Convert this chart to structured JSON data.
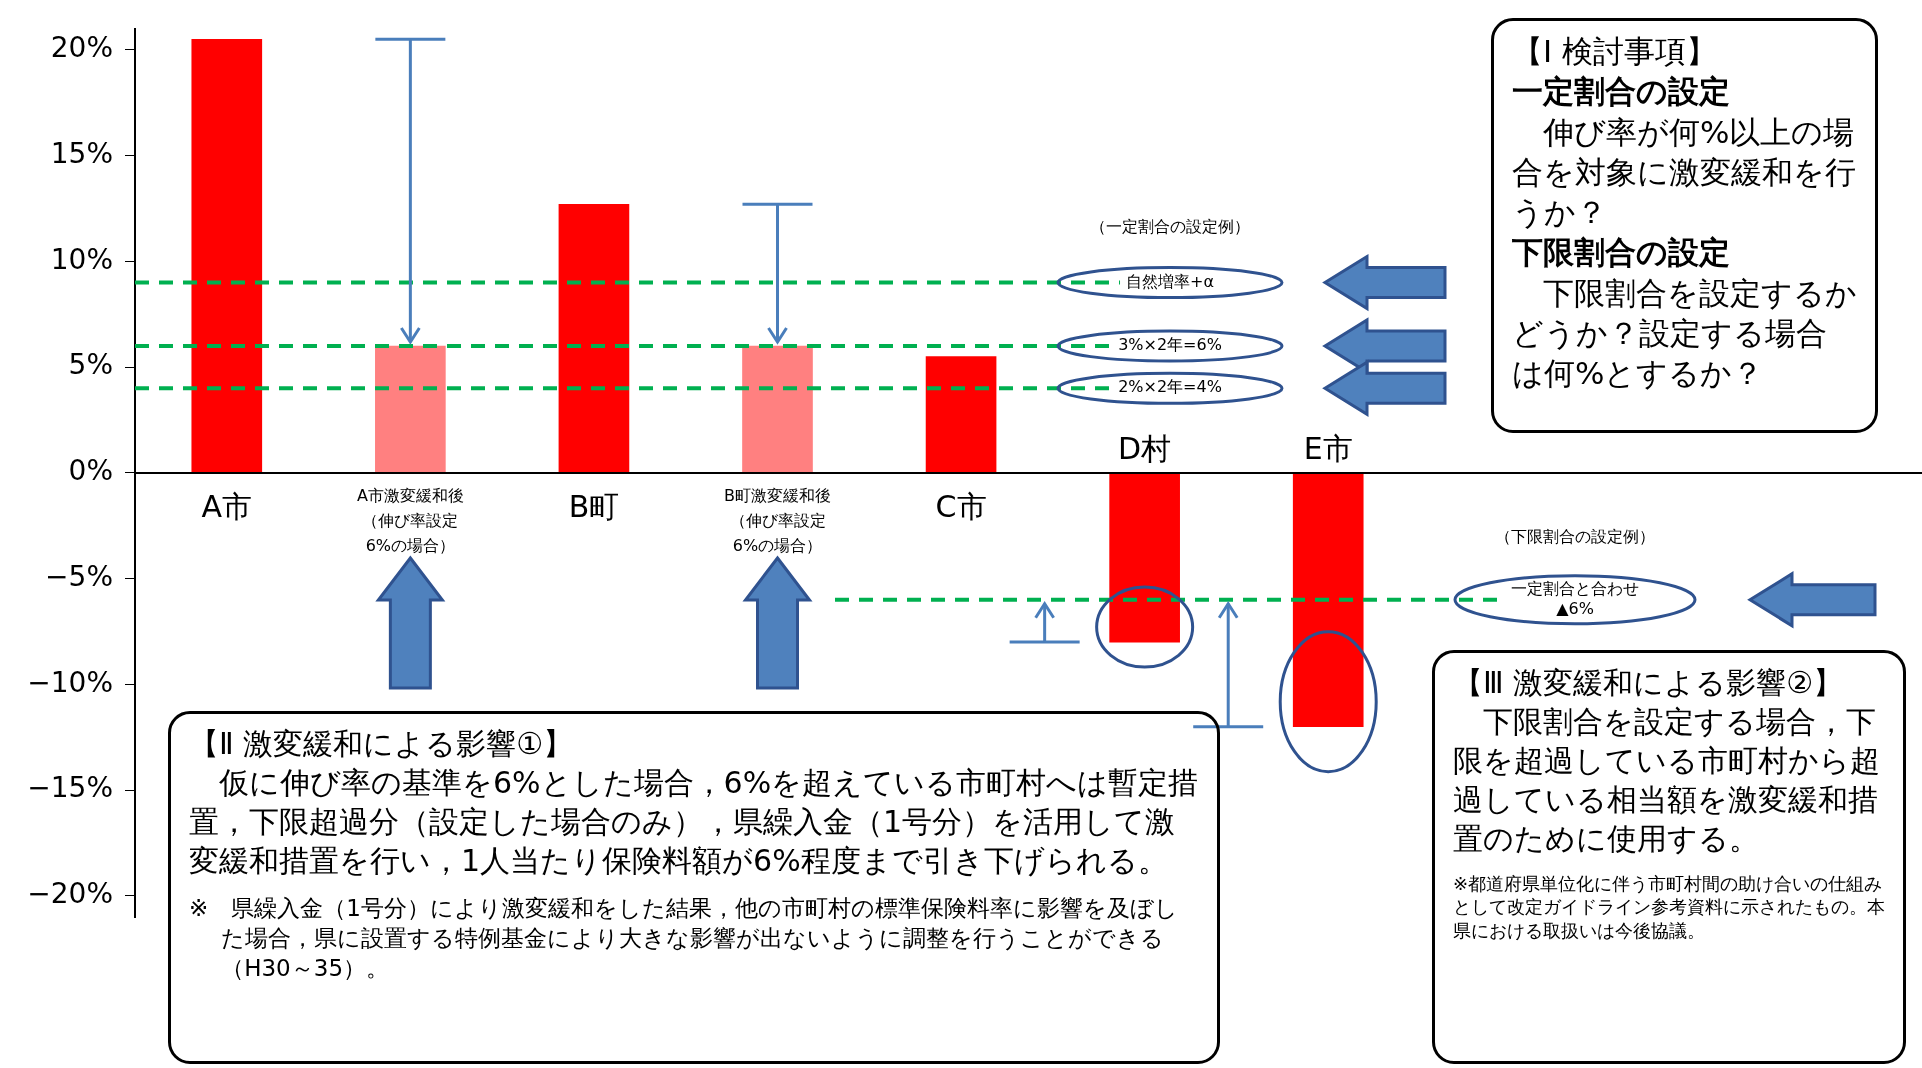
{
  "chart_data": {
    "type": "bar",
    "categories": [
      "A市",
      "A市激変緩和後（伸び率設定6%の場合）",
      "B町",
      "B町激変緩和後（伸び率設定6%の場合）",
      "C市",
      "D村",
      "E市"
    ],
    "values": [
      20.5,
      6,
      12.7,
      6,
      5.5,
      -8,
      -12
    ],
    "colors": [
      "#ff0000",
      "#ff8080",
      "#ff0000",
      "#ff8080",
      "#ff0000",
      "#ff0000",
      "#ff0000"
    ],
    "ylim": [
      -21,
      21
    ],
    "yticks": [
      {
        "value": 20,
        "label": "20%"
      },
      {
        "value": 15,
        "label": "15%"
      },
      {
        "value": 10,
        "label": "10%"
      },
      {
        "value": 5,
        "label": "5%"
      },
      {
        "value": 0,
        "label": "0%"
      },
      {
        "value": -5,
        "label": "−5%"
      },
      {
        "value": -10,
        "label": "−10%"
      },
      {
        "value": -15,
        "label": "−15%"
      },
      {
        "value": -20,
        "label": "−20%"
      }
    ],
    "ref_lines": [
      {
        "axis": "y",
        "value": 9,
        "label": "自然増率+α",
        "color": "#00b050",
        "line_style": "dashed"
      },
      {
        "axis": "y",
        "value": 6,
        "label": "3%×2年=6%",
        "color": "#00b050",
        "line_style": "dashed"
      },
      {
        "axis": "y",
        "value": 4,
        "label": "2%×2年=4%",
        "color": "#00b050",
        "line_style": "dashed"
      },
      {
        "axis": "y",
        "value": -6,
        "label": "一定割合と合わせ\n▲6%",
        "color": "#00b050",
        "line_style": "dashed"
      }
    ],
    "annotations": [
      "（一定割合の設定例）",
      "（下限割合の設定例）",
      "【Ⅰ 検討事項】",
      "一定割合の設定",
      "伸び率が何%以上の場合を対象に激変緩和を行うか？",
      "下限割合の設定",
      "下限割合を設定するかどうか？設定する場合は何%とするか？",
      "【Ⅱ 激変緩和による影響①】",
      "仮に伸び率の基準を6%とした場合，6%を超えている市町村へは暫定措置，下限超過分（設定した場合のみ），県繰入金（1号分）を活用して激変緩和措置を行い，1人当たり保険料額が6%程度まで引き下げられる。",
      "※　県繰入金（1号分）により激変緩和をした結果，他の市町村の標準保険料率に影響を及ぼした場合，県に設置する特例基金により大きな影響が出ないように調整を行うことができる（H30～35）。",
      "【Ⅲ 激変緩和による影響②】",
      "下限割合を設定する場合，下限を超過している市町村から超過している相当額を激変緩和措置のために使用する。",
      "※都道府県単位化に伴う市町村間の助け合いの仕組みとして改定ガイドライン参考資料に示されたもの。本県における取扱いは今後協議。"
    ]
  }
}
